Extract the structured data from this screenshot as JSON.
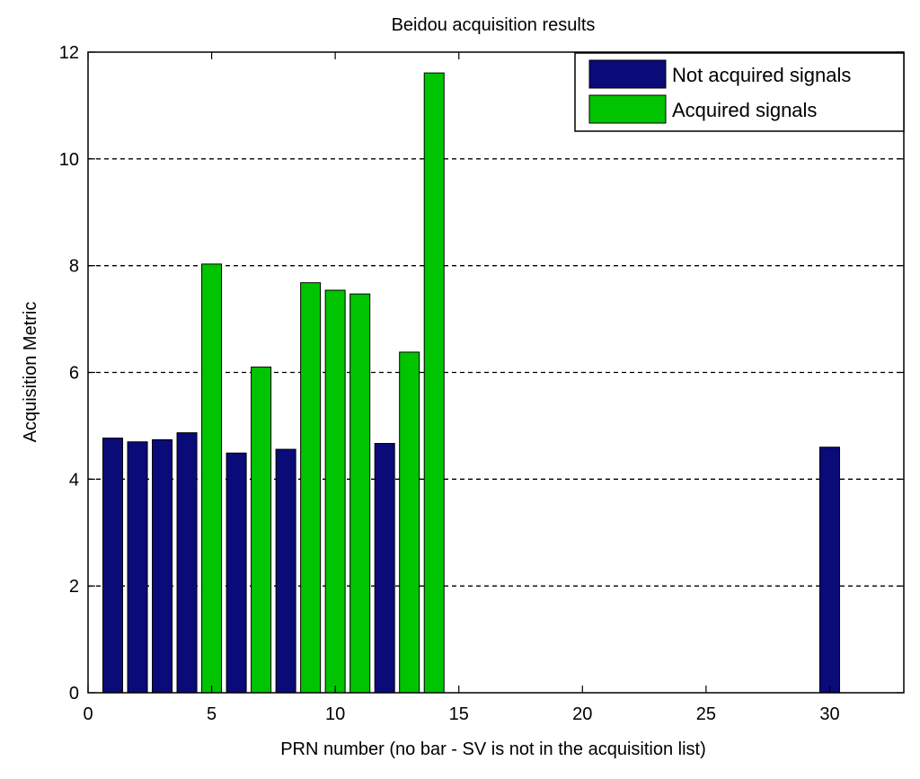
{
  "chart_data": {
    "type": "bar",
    "title": "Beidou acquisition results",
    "xlabel": "PRN number (no bar - SV is not in the acquisition list)",
    "ylabel": "Acquisition Metric",
    "xlim": [
      0,
      33
    ],
    "ylim": [
      0,
      12
    ],
    "xticks": [
      0,
      5,
      10,
      15,
      20,
      25,
      30
    ],
    "yticks": [
      0,
      2,
      4,
      6,
      8,
      10,
      12
    ],
    "grid": "horizontal dashed",
    "legend_position": "top-right",
    "bar_width": 0.8,
    "series": [
      {
        "name": "Not acquired signals",
        "color": "#0a0a78",
        "x": [
          1,
          2,
          3,
          4,
          6,
          8,
          12,
          30
        ],
        "values": [
          4.77,
          4.7,
          4.74,
          4.87,
          4.49,
          4.56,
          4.67,
          4.6
        ]
      },
      {
        "name": "Acquired signals",
        "color": "#00c400",
        "x": [
          5,
          7,
          9,
          10,
          11,
          13,
          14
        ],
        "values": [
          8.03,
          6.1,
          7.68,
          7.54,
          7.47,
          6.38,
          11.61
        ]
      }
    ]
  }
}
